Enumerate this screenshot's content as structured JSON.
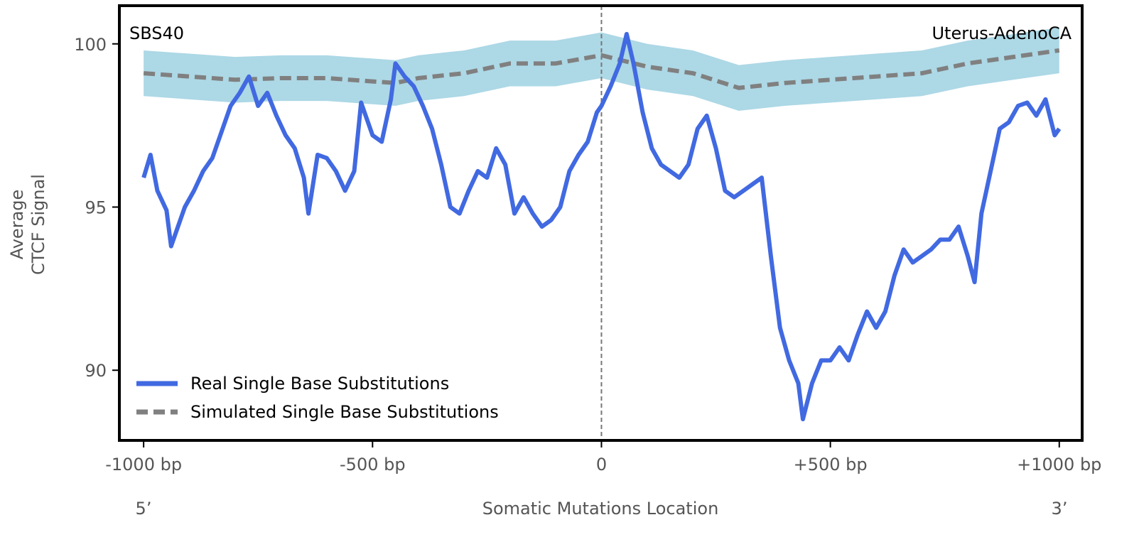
{
  "chart_data": {
    "type": "line",
    "title_left": "SBS40",
    "title_right": "Uterus-AdenoCA",
    "xlabel": "Somatic Mutations Location",
    "ylabel_lines": [
      "Average",
      "CTCF Signal"
    ],
    "x_end_labels": {
      "left": "5’",
      "right": "3’"
    },
    "xlim": [
      -1053,
      1050
    ],
    "ylim": [
      87.85,
      101.17
    ],
    "x_ticks": [
      {
        "value": -1000,
        "label": "-1000 bp"
      },
      {
        "value": -500,
        "label": "-500 bp"
      },
      {
        "value": 0,
        "label": "0"
      },
      {
        "value": 500,
        "label": "+500 bp"
      },
      {
        "value": 1000,
        "label": "+1000 bp"
      }
    ],
    "y_ticks": [
      {
        "value": 90,
        "label": "90"
      },
      {
        "value": 95,
        "label": "95"
      },
      {
        "value": 100,
        "label": "100"
      }
    ],
    "vline_at": 0,
    "legend_position": "bottom-left",
    "colors": {
      "real": "#4169e1",
      "simulated": "#808080",
      "band": "#add8e6"
    },
    "series": [
      {
        "name": "Real Single Base Substitutions",
        "style": "solid",
        "x": [
          -1000,
          -985,
          -970,
          -950,
          -940,
          -925,
          -910,
          -890,
          -870,
          -850,
          -830,
          -810,
          -790,
          -770,
          -750,
          -730,
          -710,
          -690,
          -670,
          -650,
          -640,
          -620,
          -600,
          -580,
          -560,
          -540,
          -525,
          -500,
          -480,
          -460,
          -450,
          -430,
          -410,
          -390,
          -370,
          -350,
          -330,
          -310,
          -290,
          -270,
          -250,
          -230,
          -210,
          -190,
          -170,
          -150,
          -130,
          -110,
          -90,
          -70,
          -50,
          -30,
          -10,
          0,
          20,
          40,
          55,
          70,
          90,
          110,
          130,
          150,
          170,
          190,
          210,
          230,
          250,
          270,
          290,
          310,
          330,
          350,
          370,
          390,
          410,
          430,
          440,
          460,
          480,
          500,
          520,
          540,
          560,
          580,
          600,
          620,
          640,
          660,
          680,
          700,
          720,
          740,
          760,
          780,
          800,
          815,
          830,
          850,
          870,
          890,
          910,
          930,
          950,
          970,
          990,
          1000
        ],
        "y": [
          95.9,
          96.6,
          95.5,
          94.9,
          93.8,
          94.4,
          95.0,
          95.5,
          96.1,
          96.5,
          97.3,
          98.1,
          98.5,
          99.0,
          98.1,
          98.5,
          97.8,
          97.2,
          96.8,
          95.9,
          94.8,
          96.6,
          96.5,
          96.1,
          95.5,
          96.1,
          98.2,
          97.2,
          97.0,
          98.3,
          99.4,
          99.0,
          98.7,
          98.1,
          97.4,
          96.3,
          95.0,
          94.8,
          95.5,
          96.1,
          95.9,
          96.8,
          96.3,
          94.8,
          95.3,
          94.8,
          94.4,
          94.6,
          95.0,
          96.1,
          96.6,
          97.0,
          97.9,
          98.1,
          98.7,
          99.4,
          100.3,
          99.4,
          97.9,
          96.8,
          96.3,
          96.1,
          95.9,
          96.3,
          97.4,
          97.8,
          96.8,
          95.5,
          95.3,
          95.5,
          95.7,
          95.9,
          93.5,
          91.3,
          90.3,
          89.6,
          88.5,
          89.6,
          90.3,
          90.3,
          90.7,
          90.3,
          91.1,
          91.8,
          91.3,
          91.8,
          92.9,
          93.7,
          93.3,
          93.5,
          93.7,
          94.0,
          94.0,
          94.4,
          93.5,
          92.7,
          94.8,
          96.1,
          97.4,
          97.6,
          98.1,
          98.2,
          97.8,
          98.3,
          97.2,
          97.4
        ]
      },
      {
        "name": "Simulated Single Base Substitutions",
        "style": "dashed",
        "x": [
          -1000,
          -900,
          -800,
          -700,
          -600,
          -500,
          -450,
          -400,
          -300,
          -200,
          -100,
          0,
          100,
          200,
          300,
          400,
          500,
          600,
          700,
          800,
          900,
          1000
        ],
        "y": [
          99.1,
          99.0,
          98.9,
          98.95,
          98.95,
          98.85,
          98.8,
          98.95,
          99.1,
          99.4,
          99.4,
          99.65,
          99.3,
          99.1,
          98.65,
          98.8,
          98.9,
          99.0,
          99.1,
          99.4,
          99.6,
          99.8
        ],
        "band_lower": [
          98.4,
          98.3,
          98.2,
          98.25,
          98.25,
          98.15,
          98.1,
          98.25,
          98.4,
          98.7,
          98.7,
          98.95,
          98.6,
          98.4,
          97.95,
          98.1,
          98.2,
          98.3,
          98.4,
          98.7,
          98.9,
          99.1
        ],
        "band_upper": [
          99.8,
          99.7,
          99.6,
          99.65,
          99.65,
          99.55,
          99.5,
          99.65,
          99.8,
          100.1,
          100.1,
          100.35,
          100.0,
          99.8,
          99.35,
          99.5,
          99.6,
          99.7,
          99.8,
          100.1,
          100.3,
          100.5
        ]
      }
    ]
  }
}
